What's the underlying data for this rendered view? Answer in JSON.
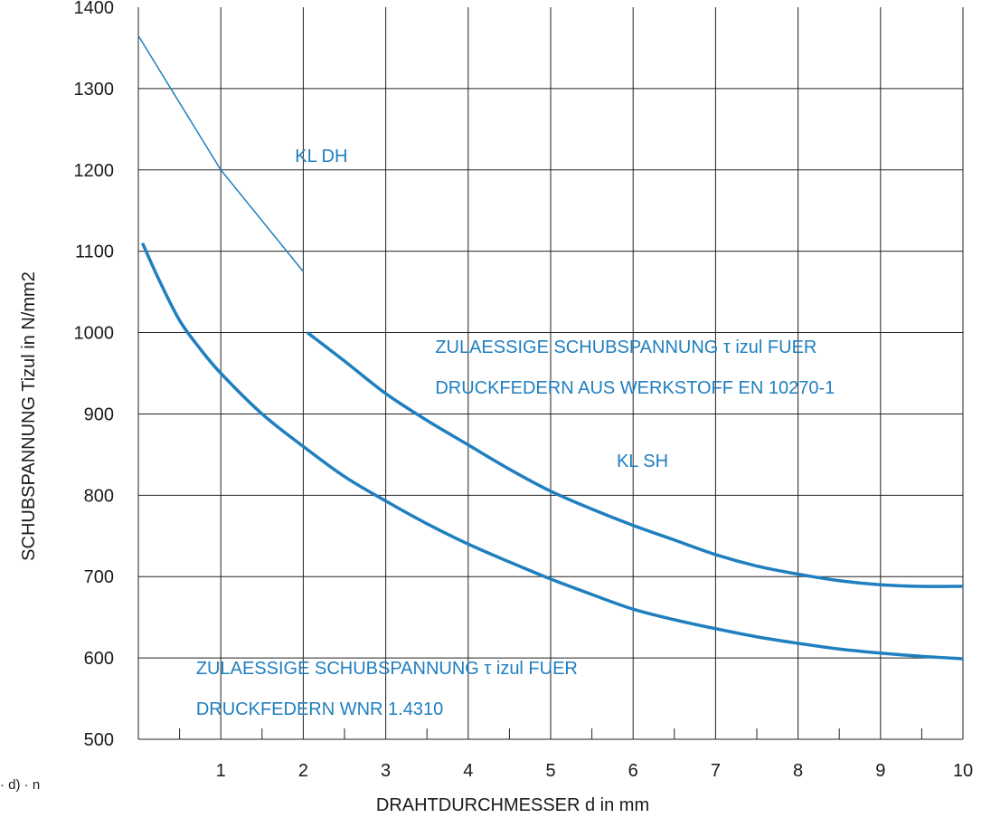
{
  "chart_data": {
    "type": "line",
    "xlabel": "DRAHTDURCHMESSER d in mm",
    "ylabel": "SCHUBSPANNUNG Tizul in N/mm2",
    "xlim": [
      0,
      10
    ],
    "ylim": [
      500,
      1400
    ],
    "x_ticks": [
      "1",
      "2",
      "3",
      "4",
      "5",
      "6",
      "7",
      "8",
      "9",
      "10"
    ],
    "y_ticks": [
      "500",
      "600",
      "700",
      "800",
      "900",
      "1000",
      "1100",
      "1200",
      "1300",
      "1400"
    ],
    "grid": true,
    "series": [
      {
        "name": "KL DH",
        "color": "#1f7fbf",
        "x": [
          0,
          1,
          2
        ],
        "y": [
          1365,
          1200,
          1075
        ]
      },
      {
        "name": "KL SH",
        "color": "#1f7fbf",
        "x": [
          2.05,
          2.5,
          3,
          3.5,
          4,
          4.5,
          5,
          5.5,
          6,
          6.5,
          7,
          7.5,
          8,
          8.5,
          9,
          9.5,
          10
        ],
        "y": [
          1000,
          965,
          925,
          892,
          862,
          832,
          805,
          783,
          763,
          745,
          727,
          713,
          703,
          695,
          690,
          688,
          688
        ]
      },
      {
        "name": "WNR 1.4310",
        "color": "#1f7fbf",
        "x": [
          0.05,
          0.25,
          0.5,
          0.75,
          1,
          1.5,
          2,
          2.5,
          3,
          3.5,
          4,
          4.5,
          5,
          5.5,
          6,
          6.5,
          7,
          7.5,
          8,
          8.5,
          9,
          9.5,
          10
        ],
        "y": [
          1110,
          1065,
          1015,
          980,
          950,
          900,
          860,
          823,
          793,
          765,
          740,
          718,
          697,
          678,
          660,
          647,
          636,
          626,
          618,
          611,
          606,
          602,
          599
        ]
      }
    ],
    "annotations": [
      {
        "text": "KL  DH",
        "x": 1.9,
        "y": 1210
      },
      {
        "text": "KL  SH",
        "x": 5.8,
        "y": 835
      },
      {
        "text": "ZULAESSIGE SCHUBSPANNUNG τ izul FUER",
        "x": 3.6,
        "y": 975
      },
      {
        "text": "DRUCKFEDERN AUS WERKSTOFF EN 10270-1",
        "x": 3.6,
        "y": 925
      },
      {
        "text": "ZULAESSIGE SCHUBSPANNUNG τ izul FUER",
        "x": 0.7,
        "y": 580
      },
      {
        "text": "DRUCKFEDERN WNR 1.4310",
        "x": 0.7,
        "y": 530
      }
    ]
  },
  "fragment_text": "· d) · n",
  "colors": {
    "curve": "#1f7fbf",
    "annotation": "#1f7fbf",
    "grid": "#222222"
  }
}
